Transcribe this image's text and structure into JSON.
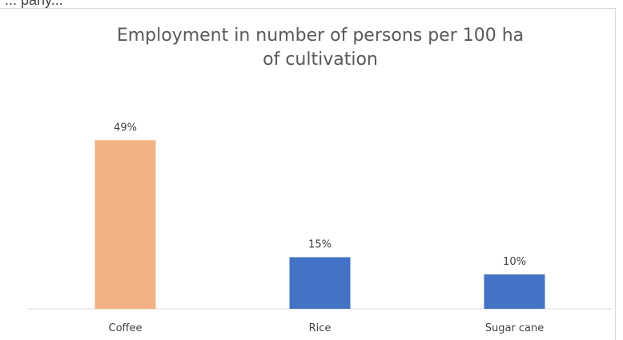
{
  "chart_data": {
    "type": "bar",
    "title": "Employment in number of persons per 100 ha of cultivation",
    "title_lines": [
      "Employment in number of persons per 100 ha",
      "of cultivation"
    ],
    "categories": [
      "Coffee",
      "Rice",
      "Sugar cane"
    ],
    "values": [
      49,
      15,
      10
    ],
    "data_labels": [
      "49%",
      "15%",
      "10%"
    ],
    "bar_colors": [
      "#f4b183",
      "#4472c4",
      "#4472c4"
    ],
    "ylim": [
      0,
      60
    ],
    "grid": false,
    "xlabel": "",
    "ylabel": ""
  },
  "top_fragment": "... pany..."
}
